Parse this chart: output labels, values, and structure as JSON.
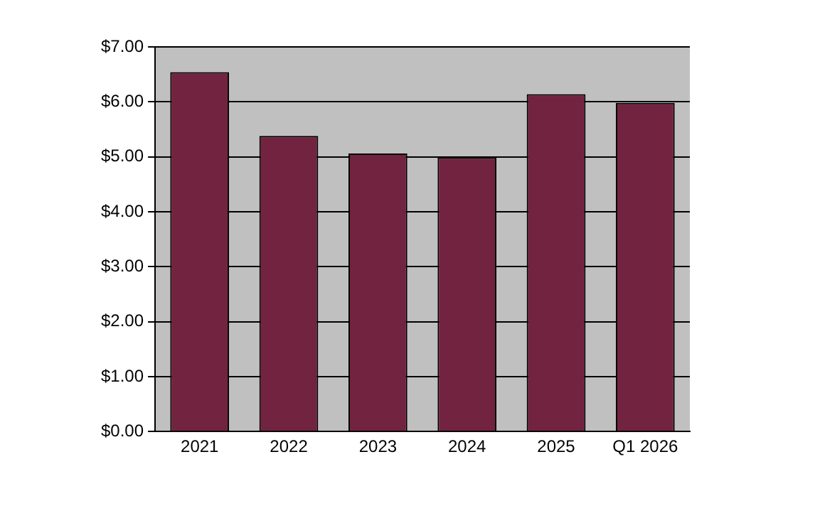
{
  "chart_data": {
    "type": "bar",
    "categories": [
      "2021",
      "2022",
      "2023",
      "2024",
      "2025",
      "Q1 2026"
    ],
    "values": [
      6.54,
      5.38,
      5.06,
      4.99,
      6.14,
      5.98
    ],
    "color": "#722340",
    "ylim": [
      0,
      7
    ],
    "yticks": [
      {
        "value": 0,
        "label": "$0.00"
      },
      {
        "value": 1,
        "label": "$1.00"
      },
      {
        "value": 2,
        "label": "$2.00"
      },
      {
        "value": 3,
        "label": "$3.00"
      },
      {
        "value": 4,
        "label": "$4.00"
      },
      {
        "value": 5,
        "label": "$5.00"
      },
      {
        "value": 6,
        "label": "$6.00"
      },
      {
        "value": 7,
        "label": "$7.00"
      }
    ],
    "grid": "y"
  }
}
